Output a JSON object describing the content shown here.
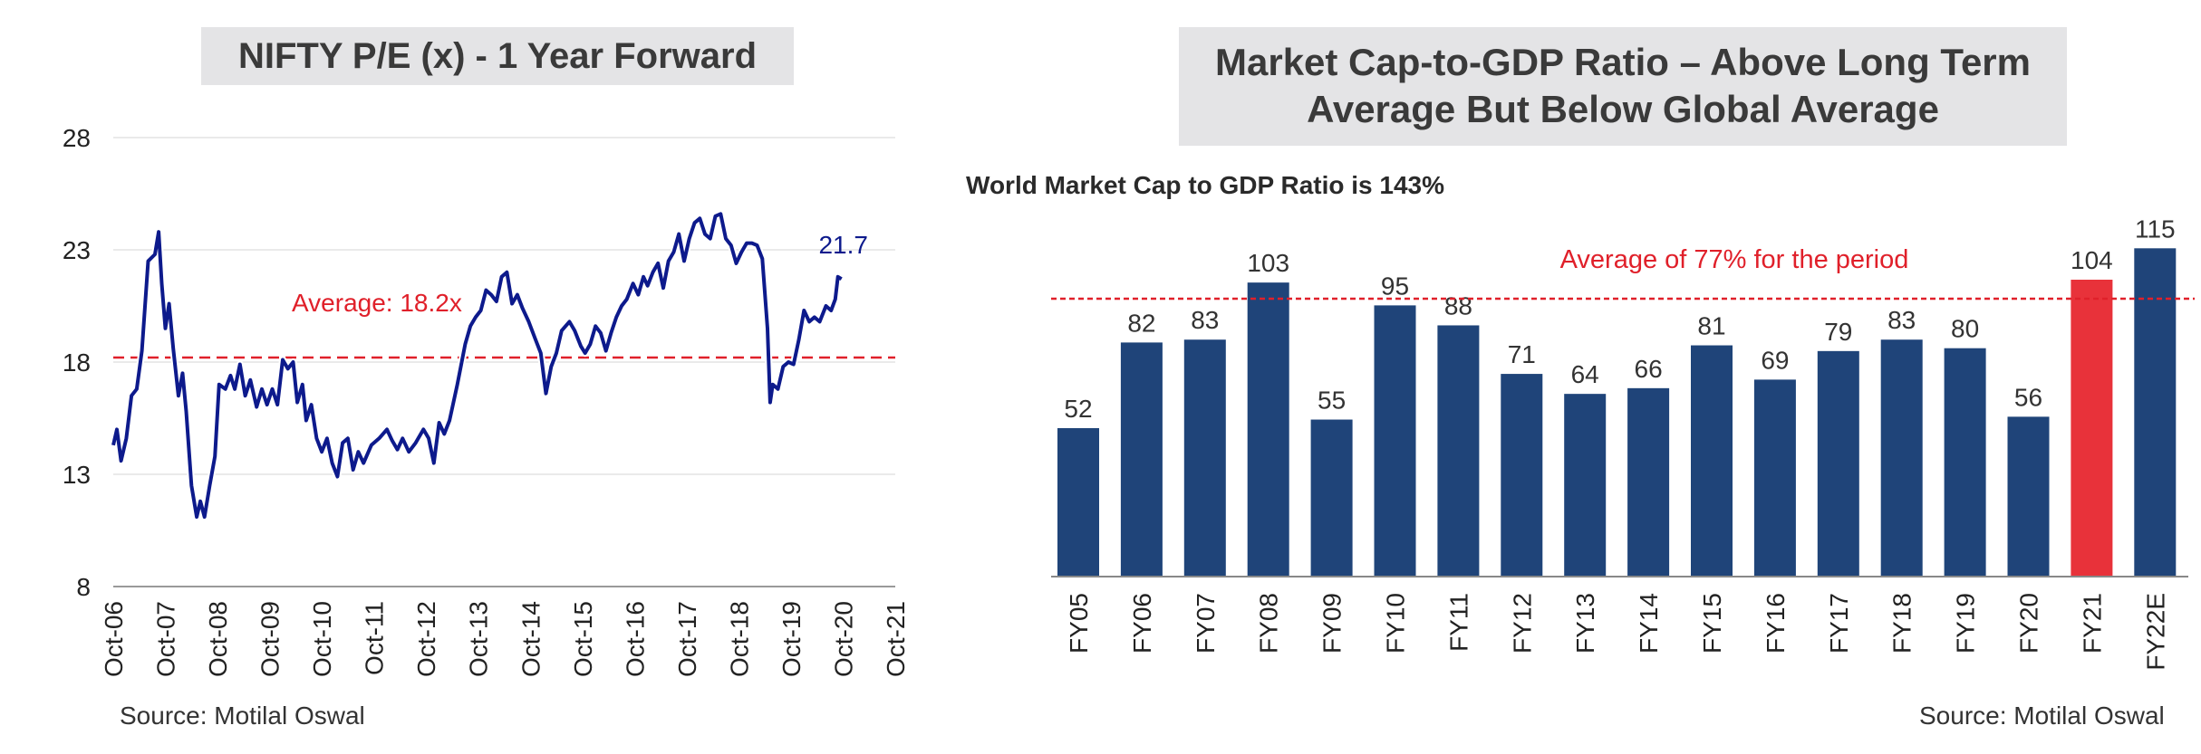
{
  "left": {
    "title": "NIFTY P/E (x) - 1 Year Forward",
    "source": "Source: Motilal Oswal",
    "average_label": "Average: 18.2x",
    "last_label": "21.7"
  },
  "right": {
    "title_line1": "Market Cap-to-GDP Ratio – Above Long Term",
    "title_line2": "Average But Below Global Average",
    "subtitle": "World Market Cap to GDP Ratio is 143%",
    "average_label": "Average of 77% for the period",
    "source": "Source: Motilal Oswal"
  },
  "colors": {
    "line": "#0d1a8c",
    "bar": "#1f4479",
    "highlight": "#e8323a",
    "average": "#e0202a"
  },
  "chart_data": [
    {
      "type": "line",
      "title": "NIFTY P/E (x) - 1 Year Forward",
      "xlabel": "",
      "ylabel": "",
      "ylim": [
        8,
        28
      ],
      "yticks": [
        8,
        13,
        18,
        23,
        28
      ],
      "xticks": [
        "Oct-06",
        "Oct-07",
        "Oct-08",
        "Oct-09",
        "Oct-10",
        "Oct-11",
        "Oct-12",
        "Oct-13",
        "Oct-14",
        "Oct-15",
        "Oct-16",
        "Oct-17",
        "Oct-18",
        "Oct-19",
        "Oct-20",
        "Oct-21"
      ],
      "average": 18.2,
      "series": [
        {
          "values": [
            [
              2006.75,
              14.3
            ],
            [
              2006.82,
              15.0
            ],
            [
              2006.9,
              13.6
            ],
            [
              2007.0,
              14.6
            ],
            [
              2007.1,
              16.5
            ],
            [
              2007.2,
              16.8
            ],
            [
              2007.3,
              18.5
            ],
            [
              2007.42,
              22.5
            ],
            [
              2007.55,
              22.8
            ],
            [
              2007.62,
              23.8
            ],
            [
              2007.68,
              21.5
            ],
            [
              2007.75,
              19.5
            ],
            [
              2007.82,
              20.6
            ],
            [
              2007.9,
              18.6
            ],
            [
              2008.0,
              16.5
            ],
            [
              2008.08,
              17.5
            ],
            [
              2008.15,
              15.8
            ],
            [
              2008.25,
              12.5
            ],
            [
              2008.35,
              11.1
            ],
            [
              2008.42,
              11.8
            ],
            [
              2008.5,
              11.1
            ],
            [
              2008.6,
              12.5
            ],
            [
              2008.7,
              13.8
            ],
            [
              2008.78,
              17.0
            ],
            [
              2008.9,
              16.8
            ],
            [
              2009.0,
              17.4
            ],
            [
              2009.08,
              16.8
            ],
            [
              2009.18,
              17.9
            ],
            [
              2009.28,
              16.5
            ],
            [
              2009.38,
              17.2
            ],
            [
              2009.5,
              16.0
            ],
            [
              2009.6,
              16.8
            ],
            [
              2009.7,
              16.1
            ],
            [
              2009.8,
              16.8
            ],
            [
              2009.9,
              16.1
            ],
            [
              2010.0,
              18.1
            ],
            [
              2010.1,
              17.7
            ],
            [
              2010.2,
              18.0
            ],
            [
              2010.28,
              16.2
            ],
            [
              2010.38,
              17.0
            ],
            [
              2010.45,
              15.4
            ],
            [
              2010.55,
              16.1
            ],
            [
              2010.65,
              14.6
            ],
            [
              2010.75,
              14.0
            ],
            [
              2010.85,
              14.6
            ],
            [
              2010.95,
              13.5
            ],
            [
              2011.05,
              12.9
            ],
            [
              2011.15,
              14.4
            ],
            [
              2011.25,
              14.6
            ],
            [
              2011.35,
              13.2
            ],
            [
              2011.45,
              14.0
            ],
            [
              2011.55,
              13.5
            ],
            [
              2011.7,
              14.3
            ],
            [
              2011.85,
              14.6
            ],
            [
              2012.0,
              15.0
            ],
            [
              2012.1,
              14.5
            ],
            [
              2012.2,
              14.1
            ],
            [
              2012.3,
              14.6
            ],
            [
              2012.42,
              14.0
            ],
            [
              2012.55,
              14.4
            ],
            [
              2012.7,
              15.0
            ],
            [
              2012.8,
              14.6
            ],
            [
              2012.9,
              13.5
            ],
            [
              2013.0,
              15.3
            ],
            [
              2013.1,
              14.8
            ],
            [
              2013.2,
              15.4
            ],
            [
              2013.35,
              17.0
            ],
            [
              2013.5,
              18.8
            ],
            [
              2013.6,
              19.6
            ],
            [
              2013.7,
              20.0
            ],
            [
              2013.8,
              20.3
            ],
            [
              2013.9,
              21.2
            ],
            [
              2014.0,
              21.0
            ],
            [
              2014.1,
              20.7
            ],
            [
              2014.2,
              21.8
            ],
            [
              2014.3,
              22.0
            ],
            [
              2014.4,
              20.6
            ],
            [
              2014.5,
              21.0
            ],
            [
              2014.6,
              20.4
            ],
            [
              2014.72,
              19.8
            ],
            [
              2014.85,
              19.0
            ],
            [
              2014.95,
              18.4
            ],
            [
              2015.05,
              16.6
            ],
            [
              2015.15,
              17.8
            ],
            [
              2015.25,
              18.4
            ],
            [
              2015.35,
              19.4
            ],
            [
              2015.5,
              19.8
            ],
            [
              2015.6,
              19.4
            ],
            [
              2015.72,
              18.7
            ],
            [
              2015.8,
              18.4
            ],
            [
              2015.9,
              18.8
            ],
            [
              2016.0,
              19.6
            ],
            [
              2016.1,
              19.3
            ],
            [
              2016.2,
              18.5
            ],
            [
              2016.3,
              19.3
            ],
            [
              2016.4,
              20.0
            ],
            [
              2016.5,
              20.5
            ],
            [
              2016.6,
              20.8
            ],
            [
              2016.72,
              21.5
            ],
            [
              2016.82,
              21.0
            ],
            [
              2016.92,
              21.8
            ],
            [
              2017.0,
              21.4
            ],
            [
              2017.1,
              22.0
            ],
            [
              2017.2,
              22.4
            ],
            [
              2017.3,
              21.3
            ],
            [
              2017.4,
              22.5
            ],
            [
              2017.5,
              22.9
            ],
            [
              2017.6,
              23.7
            ],
            [
              2017.7,
              22.5
            ],
            [
              2017.8,
              23.5
            ],
            [
              2017.9,
              24.2
            ],
            [
              2018.0,
              24.4
            ],
            [
              2018.1,
              23.7
            ],
            [
              2018.2,
              23.5
            ],
            [
              2018.3,
              24.5
            ],
            [
              2018.4,
              24.6
            ],
            [
              2018.5,
              23.5
            ],
            [
              2018.6,
              23.2
            ],
            [
              2018.7,
              22.4
            ],
            [
              2018.8,
              22.9
            ],
            [
              2018.9,
              23.3
            ],
            [
              2019.0,
              23.3
            ],
            [
              2019.1,
              23.2
            ],
            [
              2019.2,
              22.6
            ],
            [
              2019.3,
              19.5
            ],
            [
              2019.35,
              16.2
            ],
            [
              2019.4,
              17.0
            ],
            [
              2019.5,
              16.8
            ],
            [
              2019.6,
              17.8
            ],
            [
              2019.7,
              18.0
            ],
            [
              2019.8,
              17.9
            ],
            [
              2019.9,
              19.0
            ],
            [
              2020.0,
              20.3
            ],
            [
              2020.1,
              19.8
            ],
            [
              2020.2,
              20.0
            ],
            [
              2020.3,
              19.8
            ],
            [
              2020.42,
              20.5
            ],
            [
              2020.52,
              20.3
            ],
            [
              2020.6,
              20.8
            ],
            [
              2020.65,
              21.8
            ],
            [
              2020.72,
              21.7
            ]
          ]
        }
      ]
    },
    {
      "type": "bar",
      "title": "Market Cap-to-GDP Ratio – Above Long Term Average But Below Global Average",
      "xlabel": "",
      "ylabel": "",
      "ylim": [
        0,
        130
      ],
      "average": 77,
      "categories": [
        "FY05",
        "FY06",
        "FY07",
        "FY08",
        "FY09",
        "FY10",
        "FY11",
        "FY12",
        "FY13",
        "FY14",
        "FY15",
        "FY16",
        "FY17",
        "FY18",
        "FY19",
        "FY20",
        "FY21",
        "FY22E"
      ],
      "values": [
        52,
        82,
        83,
        103,
        55,
        95,
        88,
        71,
        64,
        66,
        81,
        69,
        79,
        83,
        80,
        56,
        104,
        115
      ],
      "highlight": [
        "FY21"
      ]
    }
  ]
}
